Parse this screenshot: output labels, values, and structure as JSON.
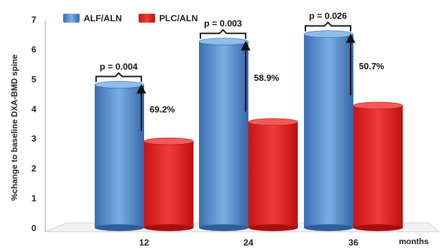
{
  "chart_data": {
    "type": "bar",
    "categories": [
      "12",
      "24",
      "36"
    ],
    "series": [
      {
        "name": "ALF/ALN",
        "values": [
          4.8,
          6.25,
          6.5
        ],
        "color": "#3f7cc4"
      },
      {
        "name": "PLC/ALN",
        "values": [
          2.9,
          3.55,
          4.1
        ],
        "color": "#e31b1b"
      }
    ],
    "ylim": [
      0,
      7
    ],
    "yticks": [
      "0",
      "1",
      "2",
      "3",
      "4",
      "5",
      "6",
      "7"
    ],
    "ylabel": "%change to baseline DXA-BMD spine",
    "xlabel": "months",
    "legend_position": "top-left",
    "annotations": [
      {
        "p_value": "p = 0.004",
        "pct_change": "69.2%"
      },
      {
        "p_value": "p = 0.003",
        "pct_change": "58.9%"
      },
      {
        "p_value": "p = 0.026",
        "pct_change": "50.7%"
      }
    ]
  }
}
